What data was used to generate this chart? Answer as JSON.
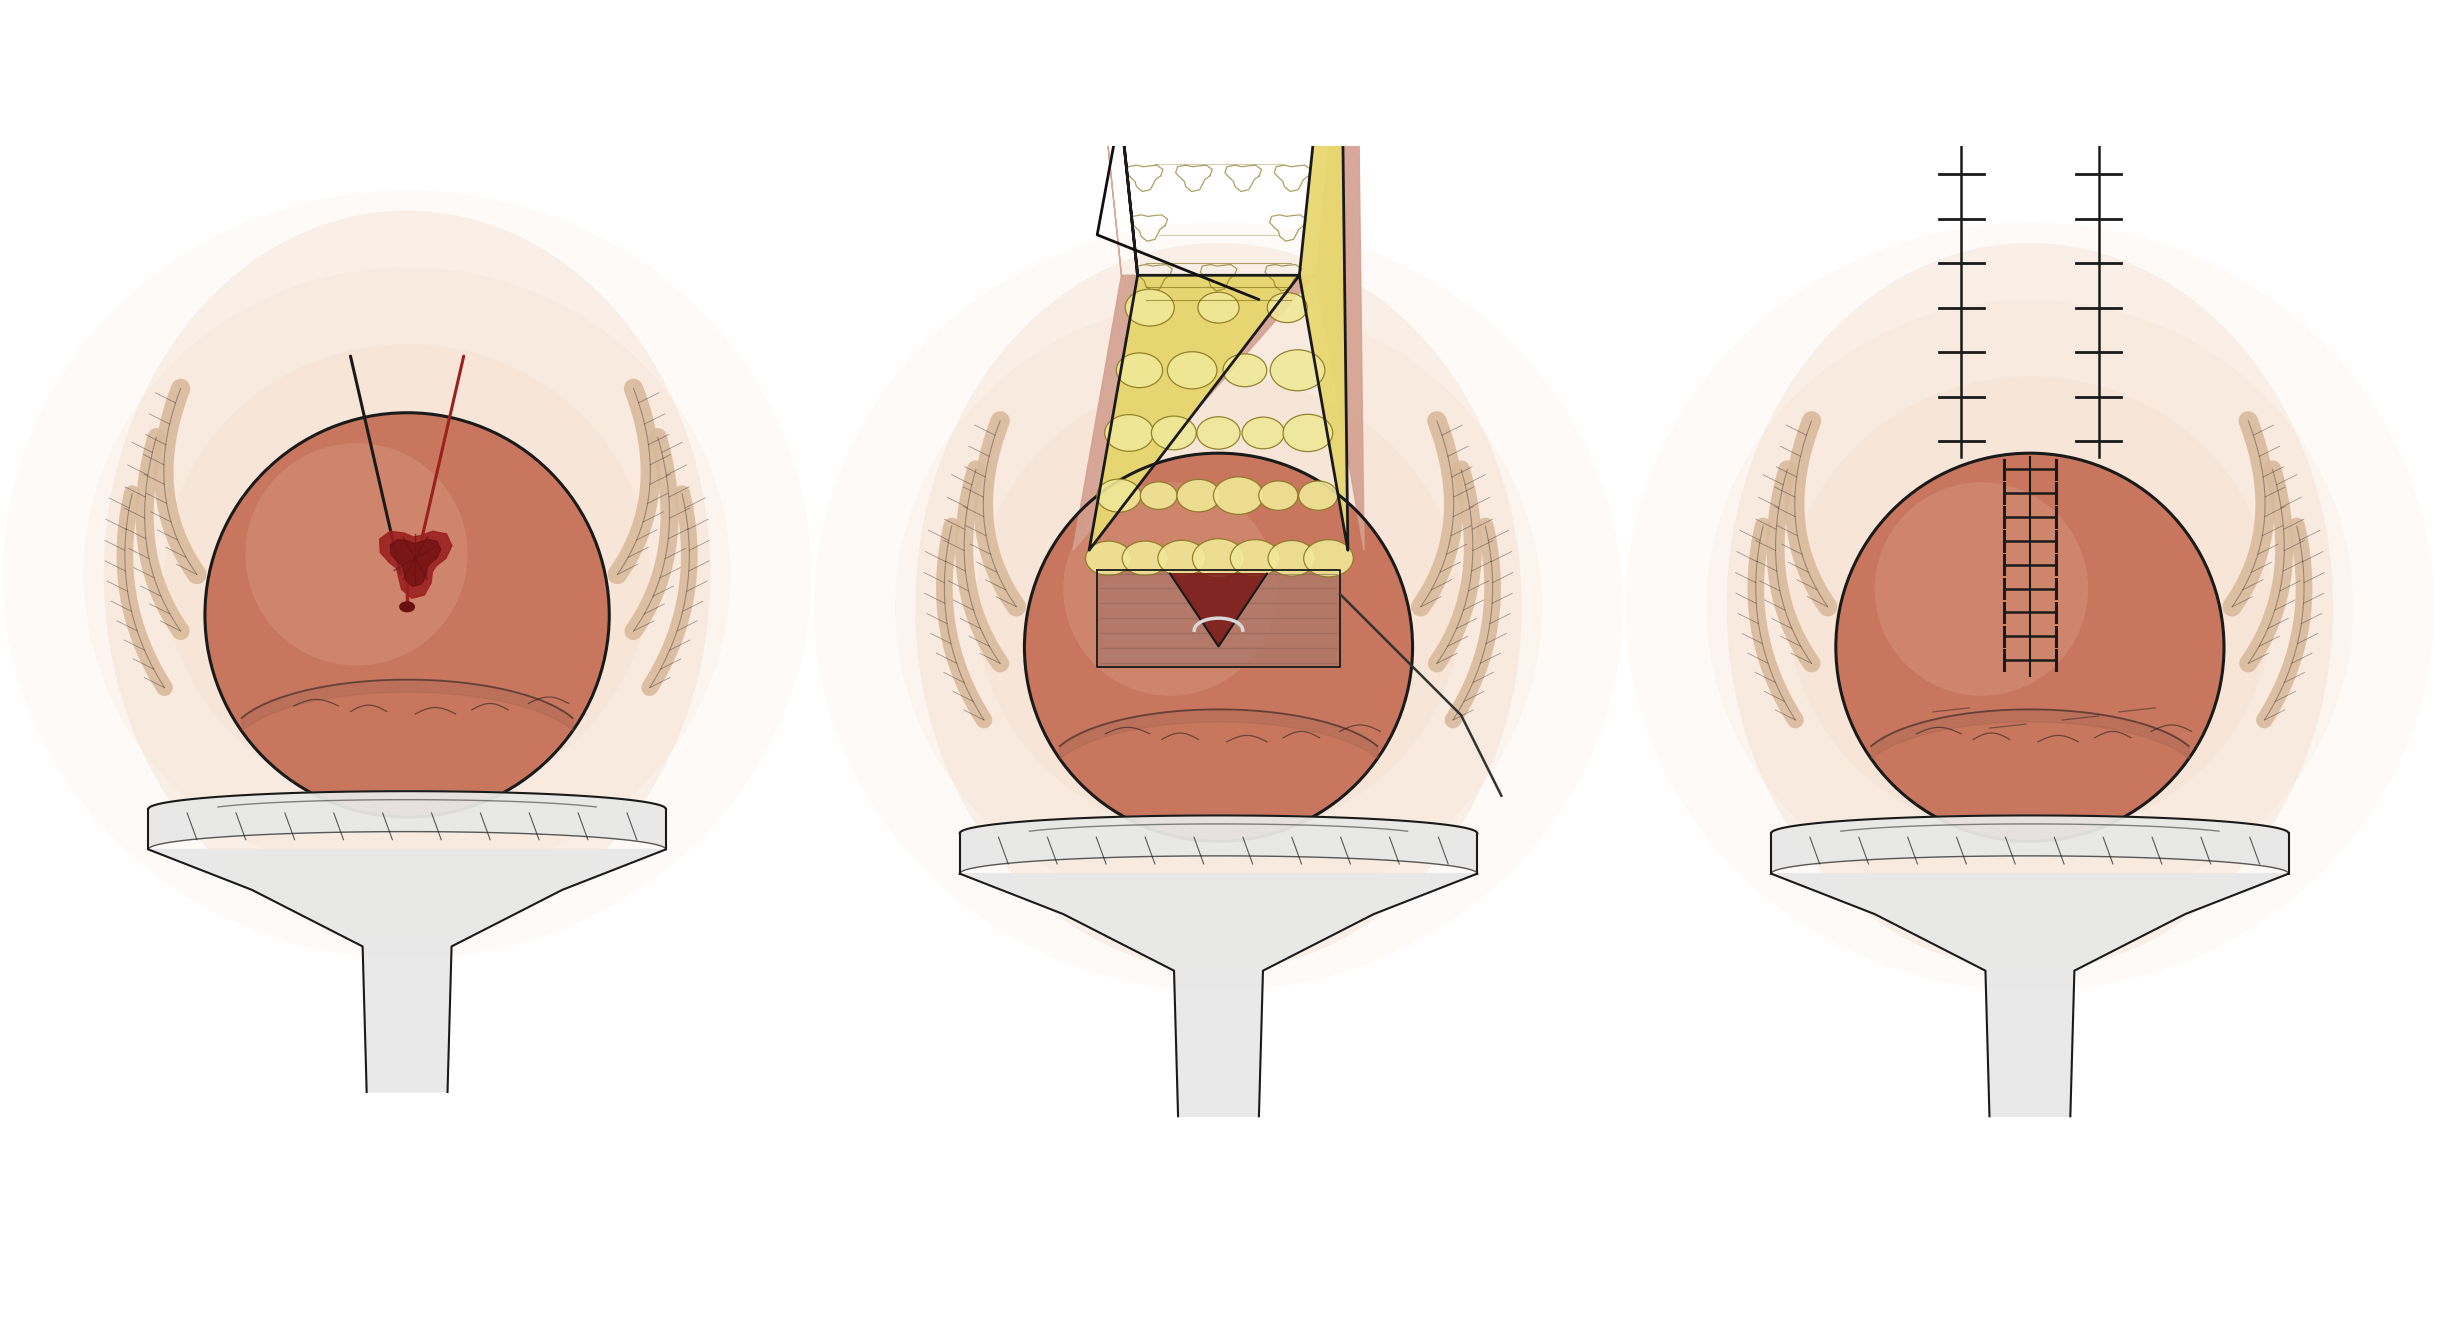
{
  "background_color": "#ffffff",
  "skin_color": "#c8775e",
  "skin_light": "#dda088",
  "skin_pale": "#e8c0a8",
  "peach_bg": "#f0c8a8",
  "tissue_yellow": "#e8d870",
  "tissue_yellow_light": "#f0e898",
  "tissue_yellow_dark": "#c8b840",
  "muscle_pink": "#b07868",
  "muscle_stripe": "#906858",
  "retractor_white": "#e8e8e8",
  "retractor_light": "#f0f0f0",
  "line_color": "#1a1a1a",
  "red_tissue": "#9b2020",
  "red_dark": "#6a1010",
  "stitch_color": "#1a1a1a",
  "finger_skin": "#d8b898",
  "finger_dark": "#c8a888",
  "figsize": [
    24.37,
    13.43
  ],
  "dpi": 100
}
